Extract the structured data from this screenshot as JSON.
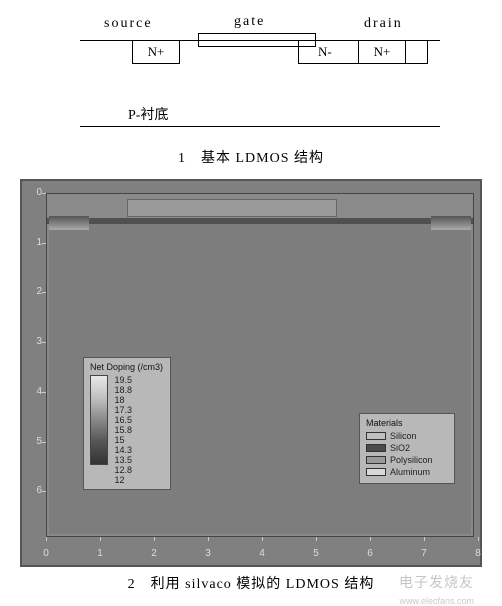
{
  "fig1": {
    "labels": {
      "source": "source",
      "gate": "gate",
      "drain": "drain",
      "nplus_left": "N+",
      "nminus": "N-",
      "nplus_right": "N+",
      "substrate": "P-衬底"
    },
    "caption": "1　基本 LDMOS 结构",
    "colors": {
      "line": "#000000",
      "text": "#000000",
      "bg": "#ffffff"
    },
    "layout": {
      "topline_y": 40,
      "gate_x": 158,
      "gate_w": 118
    }
  },
  "fig2": {
    "caption": "2　利用 silvaco 模拟的 LDMOS 结构",
    "background_color": "#808080",
    "plot_bg": "#8a8a8a",
    "substrate_color": "#7d7d7d",
    "surface_color": "#505050",
    "gate_color": "#999999",
    "contact_gradient": [
      "#555555",
      "#aaaaaa"
    ],
    "y_ticks": [
      "0",
      "1",
      "2",
      "3",
      "4",
      "5",
      "6"
    ],
    "y_range": [
      0,
      7
    ],
    "x_ticks": [
      "0",
      "1",
      "2",
      "3",
      "4",
      "5",
      "6",
      "7",
      "8"
    ],
    "x_range": [
      0,
      8
    ],
    "tick_fontsize": 10,
    "doping_legend": {
      "title": "Net Doping (/cm3)",
      "values": [
        "19.5",
        "18.8",
        "18",
        "17.3",
        "16.5",
        "15.8",
        "15",
        "14.3",
        "13.5",
        "12.8",
        "12"
      ],
      "gradient": [
        "#e8e8e8",
        "#c0c0c0",
        "#888888",
        "#555555",
        "#333333"
      ]
    },
    "materials_legend": {
      "title": "Materials",
      "items": [
        {
          "label": "Silicon",
          "color": "#bfbfbf"
        },
        {
          "label": "SiO2",
          "color": "#4a4a4a"
        },
        {
          "label": "Polysilicon",
          "color": "#9a9a9a"
        },
        {
          "label": "Aluminum",
          "color": "#d8d8d8"
        }
      ]
    }
  },
  "watermark": {
    "text": "电子发烧友",
    "url": "www.elecfans.com"
  }
}
